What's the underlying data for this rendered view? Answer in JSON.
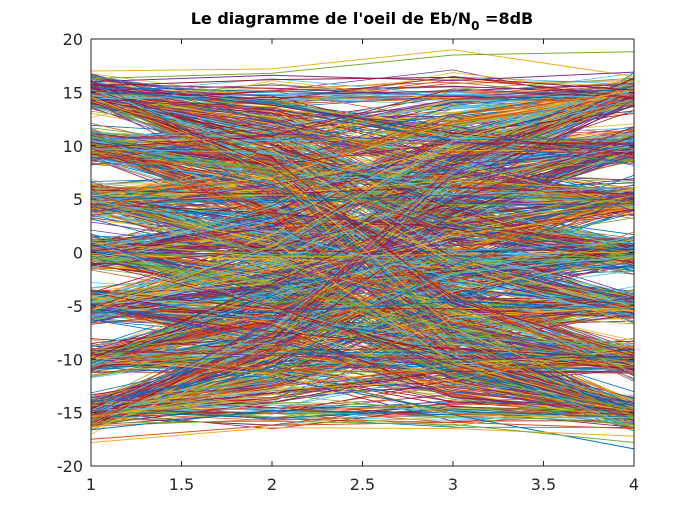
{
  "chart_data": {
    "type": "line",
    "title": "Le diagramme de l'oeil de Eb/N",
    "title_subscript": "0",
    "title_suffix": " =8dB",
    "xlabel": "",
    "ylabel": "",
    "xlim": [
      1,
      4
    ],
    "ylim": [
      -20,
      20
    ],
    "x": [
      1,
      2,
      3,
      4
    ],
    "xticks": [
      1,
      1.5,
      2,
      2.5,
      3,
      3.5,
      4
    ],
    "xtick_labels": [
      "1",
      "1.5",
      "2",
      "2.5",
      "3",
      "3.5",
      "4"
    ],
    "yticks": [
      -20,
      -15,
      -10,
      -5,
      0,
      5,
      10,
      15,
      20
    ],
    "ytick_labels": [
      "-20",
      "-15",
      "-10",
      "-5",
      "0",
      "5",
      "10",
      "15",
      "20"
    ],
    "grid": false,
    "legend": "none",
    "trace_levels": [
      -15,
      -10,
      -5,
      0,
      5,
      10,
      15
    ],
    "approx_trace_count": 1500,
    "series": [
      {
        "color": "#EDB120",
        "values": [
          17.0,
          17.2,
          19.0,
          16.5
        ]
      },
      {
        "color": "#77AC30",
        "values": [
          16.3,
          16.8,
          18.5,
          18.8
        ]
      },
      {
        "color": "#7E2F8E",
        "values": [
          16.0,
          16.6,
          16.1,
          16.9
        ]
      },
      {
        "color": "#A2142F",
        "values": [
          15.6,
          16.2,
          16.4,
          15.2
        ]
      },
      {
        "color": "#0072BD",
        "values": [
          -16.6,
          -14.8,
          -15.2,
          -18.4
        ]
      },
      {
        "color": "#D95319",
        "values": [
          -17.5,
          -16.2,
          -15.9,
          -16.5
        ]
      },
      {
        "color": "#EDB120",
        "values": [
          -17.8,
          -16.4,
          -16.5,
          -17.2
        ]
      },
      {
        "color": "#77AC30",
        "values": [
          -16.0,
          -15.8,
          -16.1,
          -17.8
        ]
      }
    ],
    "palette": [
      "#0072BD",
      "#D95319",
      "#EDB120",
      "#7E2F8E",
      "#77AC30",
      "#4DBEEE",
      "#A2142F"
    ]
  }
}
